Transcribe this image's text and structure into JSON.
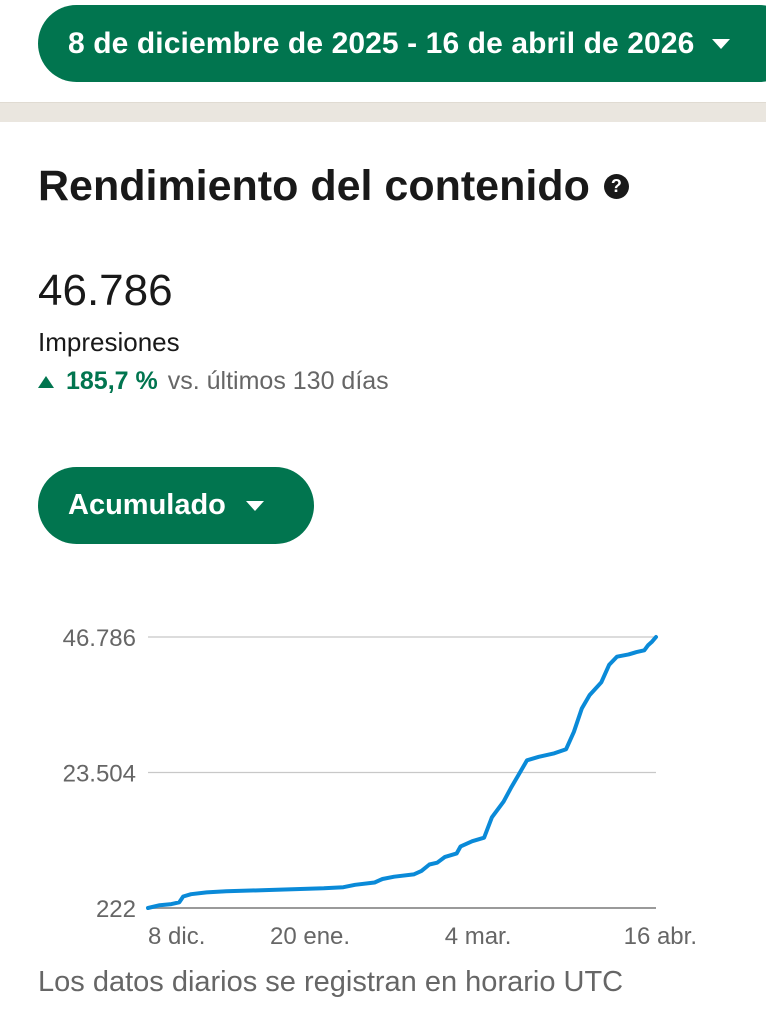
{
  "date_range": {
    "label": "8 de diciembre de 2025 - 16 de abril de 2026"
  },
  "section": {
    "title": "Rendimiento del contenido"
  },
  "metric": {
    "value": "46.786",
    "label": "Impresiones",
    "change_value": "185,7 %",
    "change_text": "vs. últimos 130 días"
  },
  "mode_selector": {
    "label": "Acumulado"
  },
  "footnote": "Los datos diarios se registran en horario UTC",
  "colors": {
    "brand_green": "#01754f",
    "line_blue": "#0a8ad8"
  },
  "chart_data": {
    "type": "line",
    "title": "",
    "xlabel": "",
    "ylabel": "",
    "y_ticks": [
      "222",
      "23.504",
      "46.786"
    ],
    "y_tick_values": [
      222,
      23504,
      46786
    ],
    "ylim": [
      222,
      46786
    ],
    "x_ticks": [
      "8 dic.",
      "20 ene.",
      "4 mar.",
      "16 abr."
    ],
    "x_tick_days": [
      0,
      43,
      86,
      129
    ],
    "grid": true,
    "series": [
      {
        "name": "",
        "points": [
          [
            0,
            222
          ],
          [
            3,
            700
          ],
          [
            6,
            900
          ],
          [
            8,
            1200
          ],
          [
            9,
            2200
          ],
          [
            11,
            2600
          ],
          [
            15,
            2900
          ],
          [
            20,
            3100
          ],
          [
            30,
            3300
          ],
          [
            40,
            3500
          ],
          [
            45,
            3600
          ],
          [
            50,
            3800
          ],
          [
            53,
            4200
          ],
          [
            58,
            4600
          ],
          [
            60,
            5200
          ],
          [
            63,
            5600
          ],
          [
            68,
            6000
          ],
          [
            70,
            6600
          ],
          [
            72,
            7700
          ],
          [
            74,
            8000
          ],
          [
            76,
            9000
          ],
          [
            79,
            9600
          ],
          [
            80,
            10800
          ],
          [
            83,
            11700
          ],
          [
            86,
            12300
          ],
          [
            88,
            15800
          ],
          [
            91,
            18500
          ],
          [
            93,
            21000
          ],
          [
            95,
            23300
          ],
          [
            97,
            25600
          ],
          [
            100,
            26200
          ],
          [
            104,
            26800
          ],
          [
            107,
            27500
          ],
          [
            109,
            30500
          ],
          [
            111,
            34500
          ],
          [
            113,
            36800
          ],
          [
            116,
            39000
          ],
          [
            118,
            42000
          ],
          [
            120,
            43400
          ],
          [
            123,
            43800
          ],
          [
            125,
            44200
          ],
          [
            127,
            44500
          ],
          [
            128,
            45400
          ],
          [
            129,
            46000
          ],
          [
            130,
            46786
          ]
        ]
      }
    ]
  }
}
